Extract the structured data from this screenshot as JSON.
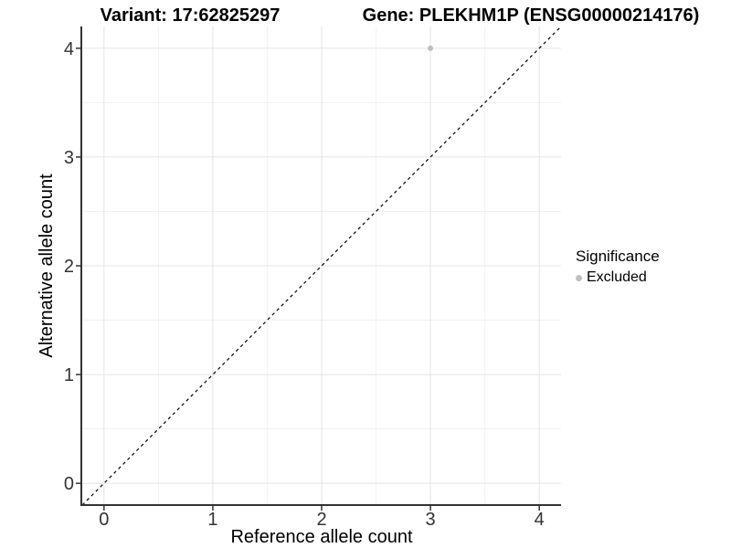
{
  "chart_data": {
    "type": "scatter",
    "titles": {
      "left": "Variant: 17:62825297",
      "right": "Gene: PLEKHM1P (ENSG00000214176)"
    },
    "xlabel": "Reference allele count",
    "ylabel": "Alternative allele count",
    "xlim": [
      -0.2,
      4.2
    ],
    "ylim": [
      -0.2,
      4.2
    ],
    "xticks": [
      0,
      1,
      2,
      3,
      4
    ],
    "yticks": [
      0,
      1,
      2,
      3,
      4
    ],
    "minor_grid_positions": [
      0.5,
      1.5,
      2.5,
      3.5
    ],
    "grid": true,
    "points": [
      {
        "x": 3,
        "y": 4,
        "series": "Excluded"
      }
    ],
    "reference_line": {
      "slope": 1,
      "intercept": 0,
      "style": "dashed",
      "color": "#000000"
    },
    "legend": {
      "title": "Significance",
      "position": "right",
      "items": [
        {
          "label": "Excluded",
          "color": "#bebebe"
        }
      ]
    },
    "colors": {
      "background": "#ffffff",
      "grid_major": "#e4e4e4",
      "grid_minor": "#f1f1f1",
      "axis_line": "#333333",
      "tick_text": "#333333",
      "point": "#bebebe"
    }
  }
}
